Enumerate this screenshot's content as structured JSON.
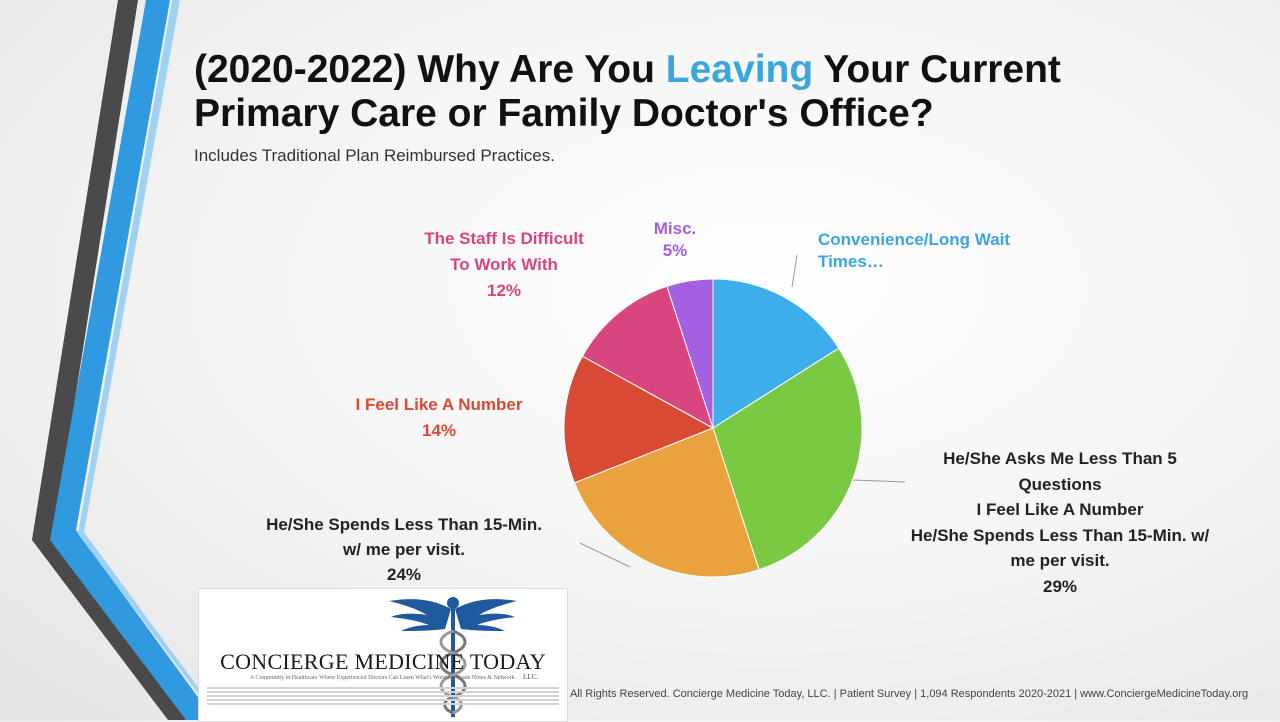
{
  "title": {
    "part1": "(2020-2022) Why Are You ",
    "highlight": "Leaving",
    "part2": " Your Current",
    "line2": "Primary Care or Family Doctor's Office?"
  },
  "subtitle": "Includes Traditional Plan Reimbursed Practices.",
  "chart_data": {
    "type": "pie",
    "title": "(2020-2022) Why Are You Leaving Your Current Primary Care or Family Doctor's Office?",
    "subtitle": "Includes Traditional Plan Reimbursed Practices.",
    "start": "top, clockwise",
    "slices": [
      {
        "label": "Convenience/Long Wait Times…",
        "value": 16,
        "value_label": "",
        "color": "#3daee9"
      },
      {
        "label": "He/She Asks Me Less Than 5 Questions I Feel Like A Number He/She Spends Less Than 15-Min. w/ me per visit.",
        "value": 29,
        "value_label": "29%",
        "color": "#7ac943"
      },
      {
        "label": "He/She Spends Less Than 15-Min. w/ me per visit.",
        "value": 24,
        "value_label": "24%",
        "color": "#eaa23f"
      },
      {
        "label": "I Feel Like A Number",
        "value": 14,
        "value_label": "14%",
        "color": "#d94a35"
      },
      {
        "label": "The Staff Is Difficult To Work With",
        "value": 12,
        "value_label": "12%",
        "color": "#d8457f"
      },
      {
        "label": "Misc.",
        "value": 5,
        "value_label": "5%",
        "color": "#a45fe3"
      }
    ]
  },
  "labels": {
    "convenience": [
      "Convenience/Long  Wait",
      "Times…"
    ],
    "asks": [
      "He/She Asks Me Less Than 5",
      "Questions",
      "I Feel Like A Number",
      "He/She Spends Less Than 15-Min. w/",
      "me per visit.",
      "29%"
    ],
    "spends": [
      "He/She Spends Less Than 15-Min.",
      "w/ me per visit.",
      "24%"
    ],
    "number": [
      "I Feel Like A Number",
      "14%"
    ],
    "staff": [
      "The Staff Is Difficult",
      "To Work With",
      "12%"
    ],
    "misc": [
      "Misc.",
      "5%"
    ]
  },
  "footer": "All Rights Reserved. Concierge Medicine Today, LLC. | Patient Survey | 1,094 Respondents 2020-2021 | www.ConciergeMedicineToday.org",
  "logo": {
    "name": "CONCIERGE MEDICINE   TODAY",
    "tagline": "A Community in Healthcare Where Experienced Doctors Can Learn What's Working, Trade Notes & Network.",
    "llc": "LLC."
  },
  "colors": {
    "accent": "#3aa6e0",
    "stripe_dark": "#4a4a4a",
    "stripe_blue": "#2f9ae0",
    "caduceus": "#1f5a9e"
  }
}
